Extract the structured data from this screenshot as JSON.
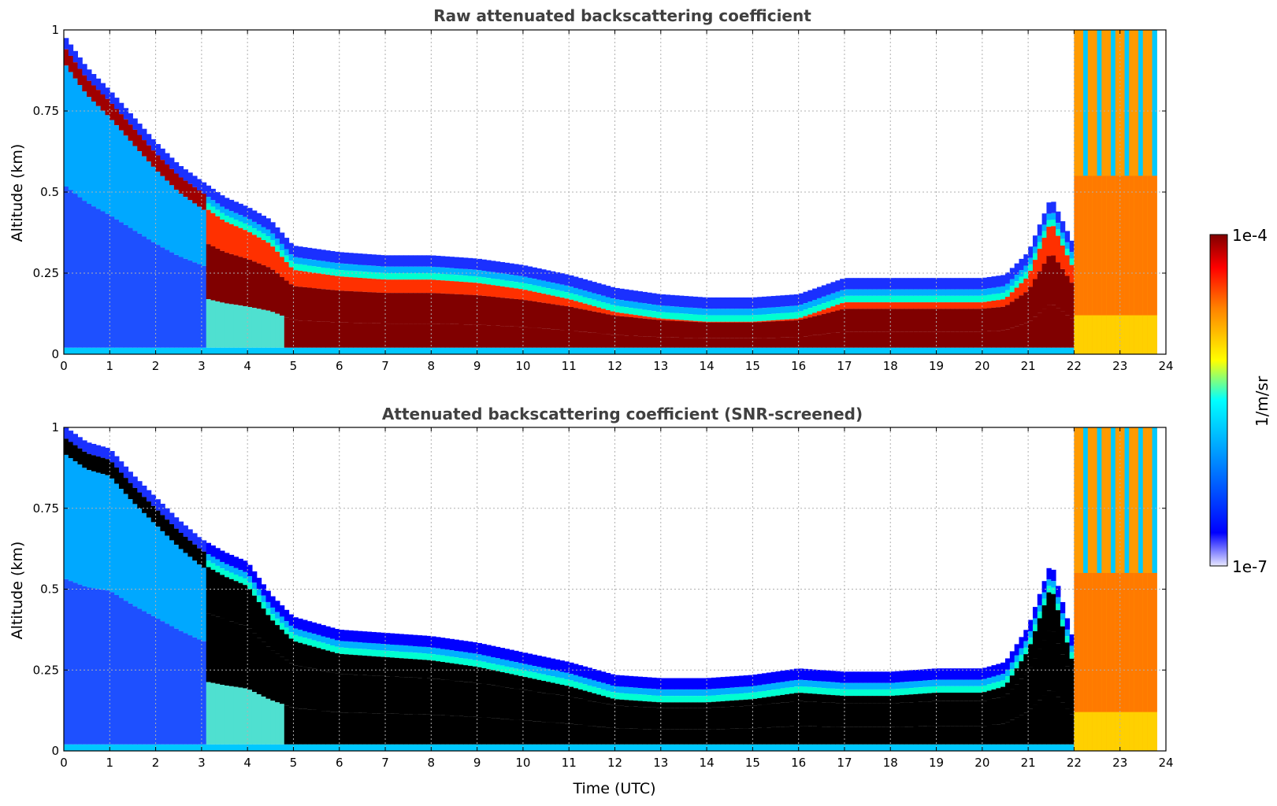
{
  "figure": {
    "xlabel": "Time (UTC)",
    "colorbar": {
      "label": "1/m/sr",
      "max_label": "1e-4",
      "min_label": "1e-7",
      "scale": "log",
      "range": [
        1e-07,
        0.0001
      ],
      "colormap": "jet with pale lavender lowest bins",
      "colors": [
        "#e8e8ff",
        "#0000ff",
        "#00b0ff",
        "#00ffff",
        "#ffff00",
        "#ff8000",
        "#ff0000",
        "#800000"
      ]
    }
  },
  "chart_data": [
    {
      "type": "heatmap",
      "title": "Raw attenuated backscattering coefficient",
      "xlabel": "",
      "ylabel": "Altitude (km)",
      "xlim": [
        0,
        24
      ],
      "ylim": [
        0,
        1
      ],
      "x_ticks": [
        "0",
        "1",
        "2",
        "3",
        "4",
        "5",
        "6",
        "7",
        "8",
        "9",
        "10",
        "11",
        "12",
        "13",
        "14",
        "15",
        "16",
        "17",
        "18",
        "19",
        "20",
        "21",
        "22",
        "23",
        "24"
      ],
      "y_ticks": [
        "0",
        "0.25",
        "0.5",
        "0.75",
        "1"
      ],
      "grid": true,
      "layer_top_km": {
        "time_utc": [
          0,
          0.5,
          1,
          1.5,
          2,
          2.5,
          3,
          3.5,
          4,
          4.5,
          5,
          6,
          7,
          8,
          9,
          10,
          11,
          12,
          13,
          14,
          15,
          16,
          17,
          18,
          19,
          20,
          20.5,
          21,
          21.5,
          22
        ],
        "altitude_km": [
          0.95,
          0.85,
          0.78,
          0.7,
          0.62,
          0.55,
          0.5,
          0.45,
          0.42,
          0.38,
          0.3,
          0.28,
          0.27,
          0.27,
          0.26,
          0.24,
          0.21,
          0.17,
          0.15,
          0.14,
          0.14,
          0.15,
          0.2,
          0.2,
          0.2,
          0.2,
          0.21,
          0.28,
          0.45,
          0.3
        ]
      },
      "high_signal_after_utc": 22.0,
      "data_end_utc": 23.8
    },
    {
      "type": "heatmap",
      "title": "Attenuated backscattering coefficient (SNR-screened)",
      "xlabel": "Time (UTC)",
      "ylabel": "Altitude (km)",
      "xlim": [
        0,
        24
      ],
      "ylim": [
        0,
        1
      ],
      "x_ticks": [
        "0",
        "1",
        "2",
        "3",
        "4",
        "5",
        "6",
        "7",
        "8",
        "9",
        "10",
        "11",
        "12",
        "13",
        "14",
        "15",
        "16",
        "17",
        "18",
        "19",
        "20",
        "21",
        "22",
        "23",
        "24"
      ],
      "y_ticks": [
        "0",
        "0.25",
        "0.5",
        "0.75",
        "1"
      ],
      "grid": true,
      "screened_core_color": "#000000",
      "layer_top_km": {
        "time_utc": [
          0,
          0.5,
          1,
          1.5,
          2,
          2.5,
          3,
          3.5,
          4,
          4.5,
          5,
          6,
          7,
          8,
          9,
          10,
          11,
          12,
          13,
          14,
          15,
          16,
          17,
          18,
          19,
          20,
          20.5,
          21,
          21.5,
          22
        ],
        "altitude_km": [
          0.97,
          0.92,
          0.9,
          0.82,
          0.75,
          0.68,
          0.62,
          0.58,
          0.55,
          0.45,
          0.38,
          0.34,
          0.33,
          0.32,
          0.3,
          0.27,
          0.24,
          0.2,
          0.19,
          0.19,
          0.2,
          0.22,
          0.21,
          0.21,
          0.22,
          0.22,
          0.24,
          0.35,
          0.55,
          0.3
        ]
      },
      "high_signal_after_utc": 22.0,
      "data_end_utc": 23.8
    }
  ]
}
